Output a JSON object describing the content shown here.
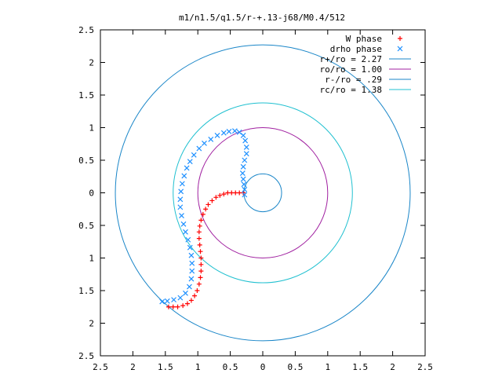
{
  "chart_data": {
    "type": "scatter",
    "title": "m1/n1.5/q1.5/r-+.13-j68/M0.4/512",
    "xlabel": "",
    "ylabel": "",
    "xlim": [
      -2.5,
      2.5
    ],
    "ylim": [
      -2.5,
      2.5
    ],
    "x_ticks": [
      -2.5,
      -2,
      -1.5,
      -1,
      -0.5,
      0,
      0.5,
      1,
      1.5,
      2,
      2.5
    ],
    "y_ticks": [
      -2.5,
      -2,
      -1.5,
      -1,
      -0.5,
      0,
      0.5,
      1,
      1.5,
      2,
      2.5
    ],
    "x_tick_labels": [
      "2.5",
      "2",
      "1.5",
      "1",
      "0.5",
      "0",
      "0.5",
      "1",
      "1.5",
      "2",
      "2.5"
    ],
    "y_tick_labels": [
      "2.5",
      "2",
      "1.5",
      "1",
      "0.5",
      "0",
      "0.5",
      "1",
      "1.5",
      "2",
      "2.5"
    ],
    "grid": false,
    "legend_position": "top-right",
    "series": [
      {
        "name": "W phase",
        "marker": "plus",
        "color": "#ff0000",
        "points": [
          [
            -0.3,
            0.0
          ],
          [
            -0.36,
            0.0
          ],
          [
            -0.42,
            0.0
          ],
          [
            -0.48,
            0.0
          ],
          [
            -0.54,
            0.0
          ],
          [
            -0.6,
            -0.02
          ],
          [
            -0.66,
            -0.04
          ],
          [
            -0.72,
            -0.07
          ],
          [
            -0.78,
            -0.12
          ],
          [
            -0.84,
            -0.18
          ],
          [
            -0.88,
            -0.25
          ],
          [
            -0.92,
            -0.33
          ],
          [
            -0.95,
            -0.42
          ],
          [
            -0.97,
            -0.51
          ],
          [
            -0.98,
            -0.6
          ],
          [
            -0.98,
            -0.7
          ],
          [
            -0.97,
            -0.8
          ],
          [
            -0.96,
            -0.9
          ],
          [
            -0.95,
            -1.0
          ],
          [
            -0.95,
            -1.1
          ],
          [
            -0.95,
            -1.2
          ],
          [
            -0.96,
            -1.3
          ],
          [
            -0.98,
            -1.4
          ],
          [
            -1.01,
            -1.5
          ],
          [
            -1.05,
            -1.58
          ],
          [
            -1.1,
            -1.65
          ],
          [
            -1.16,
            -1.7
          ],
          [
            -1.23,
            -1.73
          ],
          [
            -1.31,
            -1.75
          ],
          [
            -1.38,
            -1.75
          ],
          [
            -1.45,
            -1.75
          ]
        ]
      },
      {
        "name": "drho phase",
        "marker": "cross",
        "color": "#1e90ff",
        "points": [
          [
            -0.28,
            -0.03
          ],
          [
            -0.28,
            0.05
          ],
          [
            -0.29,
            0.13
          ],
          [
            -0.3,
            0.21
          ],
          [
            -0.31,
            0.3
          ],
          [
            -0.3,
            0.4
          ],
          [
            -0.28,
            0.5
          ],
          [
            -0.25,
            0.6
          ],
          [
            -0.25,
            0.7
          ],
          [
            -0.27,
            0.8
          ],
          [
            -0.3,
            0.88
          ],
          [
            -0.36,
            0.93
          ],
          [
            -0.43,
            0.95
          ],
          [
            -0.52,
            0.94
          ],
          [
            -0.6,
            0.92
          ],
          [
            -0.7,
            0.88
          ],
          [
            -0.8,
            0.82
          ],
          [
            -0.9,
            0.76
          ],
          [
            -0.98,
            0.68
          ],
          [
            -1.06,
            0.58
          ],
          [
            -1.12,
            0.48
          ],
          [
            -1.17,
            0.38
          ],
          [
            -1.21,
            0.26
          ],
          [
            -1.24,
            0.14
          ],
          [
            -1.26,
            0.02
          ],
          [
            -1.27,
            -0.1
          ],
          [
            -1.27,
            -0.22
          ],
          [
            -1.25,
            -0.35
          ],
          [
            -1.22,
            -0.48
          ],
          [
            -1.19,
            -0.6
          ],
          [
            -1.15,
            -0.72
          ],
          [
            -1.12,
            -0.84
          ],
          [
            -1.1,
            -0.96
          ],
          [
            -1.09,
            -1.08
          ],
          [
            -1.09,
            -1.2
          ],
          [
            -1.1,
            -1.32
          ],
          [
            -1.13,
            -1.44
          ],
          [
            -1.19,
            -1.54
          ],
          [
            -1.27,
            -1.61
          ],
          [
            -1.37,
            -1.64
          ],
          [
            -1.47,
            -1.66
          ],
          [
            -1.55,
            -1.67
          ]
        ]
      },
      {
        "name": "r+/ro = 2.27",
        "type": "circle",
        "radius": 2.27,
        "color": "#1a86c8"
      },
      {
        "name": "ro/ro = 1.00",
        "type": "circle",
        "radius": 1.0,
        "color": "#a020a0"
      },
      {
        "name": "r-/ro = .29",
        "type": "circle",
        "radius": 0.29,
        "color": "#1a86c8"
      },
      {
        "name": "rc/ro = 1.38",
        "type": "circle",
        "radius": 1.38,
        "color": "#20c0d0"
      }
    ]
  }
}
